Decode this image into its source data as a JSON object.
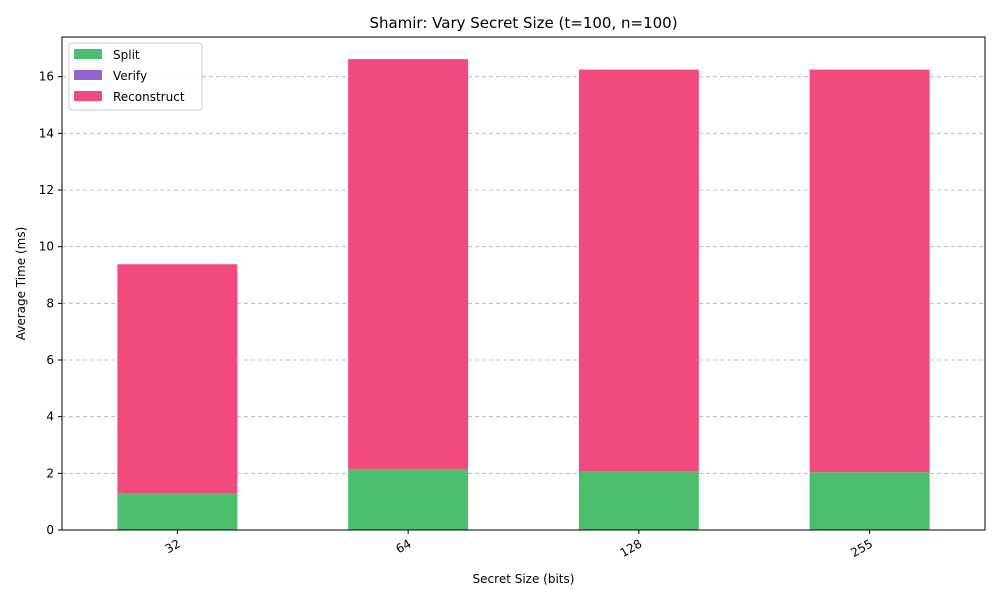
{
  "chart_data": {
    "type": "bar",
    "stacked": true,
    "title": "Shamir: Vary Secret Size (t=100, n=100)",
    "xlabel": "Secret Size (bits)",
    "ylabel": "Average Time (ms)",
    "categories": [
      "32",
      "64",
      "128",
      "255"
    ],
    "series": [
      {
        "name": "Split",
        "color": "#4dbd6e",
        "values": [
          1.28,
          2.15,
          2.08,
          2.04
        ]
      },
      {
        "name": "Verify",
        "color": "#9363d0",
        "values": [
          0,
          0,
          0,
          0
        ]
      },
      {
        "name": "Reconstruct",
        "color": "#f04b7c",
        "values": [
          8.1,
          14.47,
          14.17,
          14.21
        ]
      }
    ],
    "ylim": [
      0,
      17.4
    ],
    "yticks": [
      "0",
      "2",
      "4",
      "6",
      "8",
      "10",
      "12",
      "14",
      "16"
    ],
    "grid": "y-dashed",
    "legend_position": "top-left",
    "xtick_rotation": "30 degrees"
  }
}
